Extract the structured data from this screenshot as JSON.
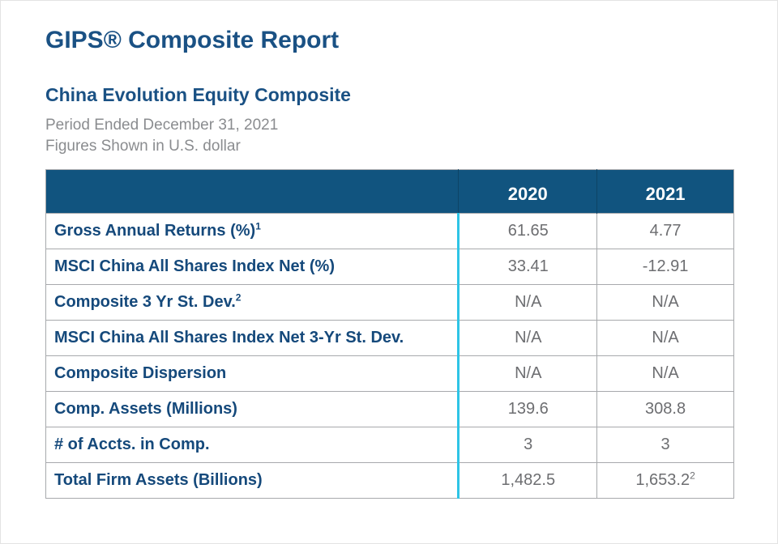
{
  "report": {
    "title": "GIPS® Composite Report",
    "composite_name": "China Evolution Equity Composite",
    "period": "Period Ended December 31, 2021",
    "currency_note": "Figures Shown in U.S. dollar"
  },
  "table": {
    "columns": [
      "2020",
      "2021"
    ],
    "rows": [
      {
        "label": "Gross Annual Returns (%)",
        "label_sup": "1",
        "values": [
          "61.65",
          "4.77"
        ],
        "value_sups": [
          "",
          ""
        ]
      },
      {
        "label": "MSCI China All Shares Index Net (%)",
        "label_sup": "",
        "values": [
          "33.41",
          "-12.91"
        ],
        "value_sups": [
          "",
          ""
        ]
      },
      {
        "label": "Composite 3 Yr St. Dev.",
        "label_sup": "2",
        "values": [
          "N/A",
          "N/A"
        ],
        "value_sups": [
          "",
          ""
        ]
      },
      {
        "label": "MSCI China All Shares Index Net 3-Yr St. Dev.",
        "label_sup": "",
        "values": [
          "N/A",
          "N/A"
        ],
        "value_sups": [
          "",
          ""
        ]
      },
      {
        "label": "Composite Dispersion",
        "label_sup": "",
        "values": [
          "N/A",
          "N/A"
        ],
        "value_sups": [
          "",
          ""
        ]
      },
      {
        "label": "Comp. Assets (Millions)",
        "label_sup": "",
        "values": [
          "139.6",
          "308.8"
        ],
        "value_sups": [
          "",
          ""
        ]
      },
      {
        "label": "# of Accts. in Comp.",
        "label_sup": "",
        "values": [
          "3",
          "3"
        ],
        "value_sups": [
          "",
          ""
        ]
      },
      {
        "label": "Total Firm Assets (Billions)",
        "label_sup": "",
        "values": [
          "1,482.5",
          "1,653.2"
        ],
        "value_sups": [
          "",
          "2"
        ]
      }
    ]
  },
  "colors": {
    "header_bg": "#11547F",
    "accent_blue": "#1A5184",
    "label_navy": "#15497B",
    "value_gray": "#6D6E71",
    "muted_gray": "#8A8C8F",
    "cyan_divider": "#2EC4E6",
    "table_border": "#A7A9AC"
  }
}
